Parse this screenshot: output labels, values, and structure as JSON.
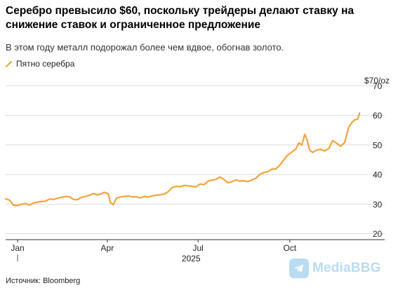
{
  "chart_data": {
    "type": "line",
    "title": "Серебро превысило $60, поскольку трейдеры делают ставку на снижение ставок и ограниченное предложение",
    "subtitle": "В этом году металл подорожал более чем вдвое, обогнав золото.",
    "unit_label": "$70/oz",
    "xlabel": "2025",
    "ylabel": "",
    "x_ticks": [
      "Jan",
      "Apr",
      "Jul",
      "Oct"
    ],
    "y_ticks": [
      20,
      30,
      40,
      50,
      60,
      70
    ],
    "ylim": [
      18,
      72
    ],
    "grid": true,
    "legend_position": "top-left",
    "source": "Источник: Bloomberg",
    "series": [
      {
        "name": "Пятно серебра",
        "color": "#f5a33a",
        "x": [
          "2024-12-20",
          "2024-12-24",
          "2024-12-28",
          "2025-01-01",
          "2025-01-05",
          "2025-01-09",
          "2025-01-13",
          "2025-01-17",
          "2025-01-21",
          "2025-01-25",
          "2025-01-29",
          "2025-02-02",
          "2025-02-06",
          "2025-02-10",
          "2025-02-14",
          "2025-02-18",
          "2025-02-22",
          "2025-02-26",
          "2025-03-02",
          "2025-03-06",
          "2025-03-10",
          "2025-03-14",
          "2025-03-18",
          "2025-03-22",
          "2025-03-26",
          "2025-03-29",
          "2025-04-02",
          "2025-04-04",
          "2025-04-07",
          "2025-04-10",
          "2025-04-14",
          "2025-04-18",
          "2025-04-22",
          "2025-04-26",
          "2025-04-30",
          "2025-05-04",
          "2025-05-08",
          "2025-05-12",
          "2025-05-16",
          "2025-05-20",
          "2025-05-24",
          "2025-05-28",
          "2025-06-01",
          "2025-06-05",
          "2025-06-09",
          "2025-06-13",
          "2025-06-17",
          "2025-06-21",
          "2025-06-25",
          "2025-06-29",
          "2025-07-03",
          "2025-07-07",
          "2025-07-11",
          "2025-07-15",
          "2025-07-19",
          "2025-07-23",
          "2025-07-27",
          "2025-07-31",
          "2025-08-04",
          "2025-08-08",
          "2025-08-12",
          "2025-08-16",
          "2025-08-20",
          "2025-08-24",
          "2025-08-28",
          "2025-09-01",
          "2025-09-05",
          "2025-09-09",
          "2025-09-13",
          "2025-09-17",
          "2025-09-21",
          "2025-09-25",
          "2025-09-29",
          "2025-10-03",
          "2025-10-07",
          "2025-10-10",
          "2025-10-13",
          "2025-10-16",
          "2025-10-18",
          "2025-10-21",
          "2025-10-24",
          "2025-10-28",
          "2025-11-01",
          "2025-11-05",
          "2025-11-09",
          "2025-11-13",
          "2025-11-17",
          "2025-11-21",
          "2025-11-25",
          "2025-11-29",
          "2025-12-02",
          "2025-12-05",
          "2025-12-08",
          "2025-12-10"
        ],
        "values": [
          31.8,
          31.3,
          29.6,
          29.5,
          30.0,
          30.2,
          29.7,
          30.4,
          30.7,
          30.9,
          31.0,
          31.7,
          31.6,
          32.0,
          32.3,
          32.6,
          32.5,
          31.6,
          31.5,
          32.3,
          32.6,
          33.0,
          33.6,
          33.1,
          33.5,
          34.0,
          33.5,
          30.6,
          29.8,
          32.0,
          32.4,
          32.6,
          32.8,
          32.4,
          32.5,
          32.1,
          32.6,
          32.4,
          32.8,
          33.0,
          33.2,
          33.4,
          34.2,
          35.6,
          36.0,
          35.9,
          36.3,
          36.2,
          36.0,
          35.8,
          36.8,
          36.6,
          37.8,
          38.1,
          38.4,
          39.2,
          38.3,
          37.2,
          37.6,
          38.2,
          37.8,
          37.9,
          37.6,
          38.2,
          38.8,
          40.1,
          40.7,
          41.0,
          41.8,
          41.9,
          43.2,
          45.0,
          46.6,
          47.6,
          48.6,
          50.7,
          50.0,
          53.6,
          52.0,
          48.2,
          47.5,
          48.3,
          48.5,
          48.0,
          48.8,
          51.5,
          50.6,
          49.6,
          50.8,
          56.0,
          57.5,
          58.5,
          58.7,
          60.8
        ]
      }
    ]
  },
  "watermark": {
    "text": "MediaBBG",
    "icon": "telegram-icon",
    "color": "#b9dcf2"
  }
}
